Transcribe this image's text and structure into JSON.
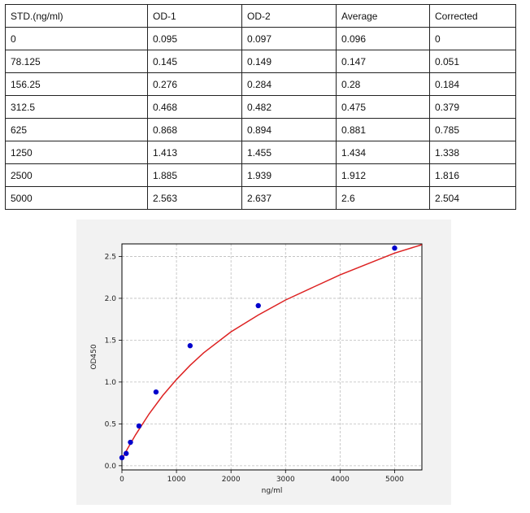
{
  "table": {
    "headers": [
      "STD.(ng/ml)",
      "OD-1",
      "OD-2",
      "Average",
      "Corrected"
    ],
    "rows": [
      [
        "0",
        "0.095",
        "0.097",
        "0.096",
        "0"
      ],
      [
        "78.125",
        "0.145",
        "0.149",
        "0.147",
        "0.051"
      ],
      [
        "156.25",
        "0.276",
        "0.284",
        "0.28",
        "0.184"
      ],
      [
        "312.5",
        "0.468",
        "0.482",
        "0.475",
        "0.379"
      ],
      [
        "625",
        "0.868",
        "0.894",
        "0.881",
        "0.785"
      ],
      [
        "1250",
        "1.413",
        "1.455",
        "1.434",
        "1.338"
      ],
      [
        "2500",
        "1.885",
        "1.939",
        "1.912",
        "1.816"
      ],
      [
        "5000",
        "2.563",
        "2.637",
        "2.6",
        "2.504"
      ]
    ]
  },
  "chart_data": {
    "type": "scatter",
    "title": "",
    "xlabel": "ng/ml",
    "ylabel": "OD450",
    "xlim": [
      0,
      5500
    ],
    "ylim": [
      -0.05,
      2.65
    ],
    "xticks": [
      0,
      1000,
      2000,
      3000,
      4000,
      5000
    ],
    "yticks": [
      0.0,
      0.5,
      1.0,
      1.5,
      2.0,
      2.5
    ],
    "xtick_labels": [
      "0",
      "1000",
      "2000",
      "3000",
      "4000",
      "5000"
    ],
    "ytick_labels": [
      "0.0",
      "0.5",
      "1.0",
      "1.5",
      "2.0",
      "2.5"
    ],
    "grid": true,
    "series": [
      {
        "kind": "points",
        "color": "#0000cc",
        "x": [
          0,
          78.125,
          156.25,
          312.5,
          625,
          1250,
          2500,
          5000
        ],
        "y": [
          0.096,
          0.147,
          0.28,
          0.475,
          0.881,
          1.434,
          1.912,
          2.6
        ]
      },
      {
        "kind": "fit-curve",
        "color": "#dd2222",
        "x": [
          0,
          100,
          250,
          500,
          750,
          1000,
          1250,
          1500,
          2000,
          2500,
          3000,
          3500,
          4000,
          4500,
          5000,
          5500
        ],
        "y": [
          0.08,
          0.2,
          0.37,
          0.62,
          0.84,
          1.03,
          1.2,
          1.35,
          1.6,
          1.8,
          1.98,
          2.13,
          2.28,
          2.41,
          2.54,
          2.64
        ]
      }
    ]
  }
}
